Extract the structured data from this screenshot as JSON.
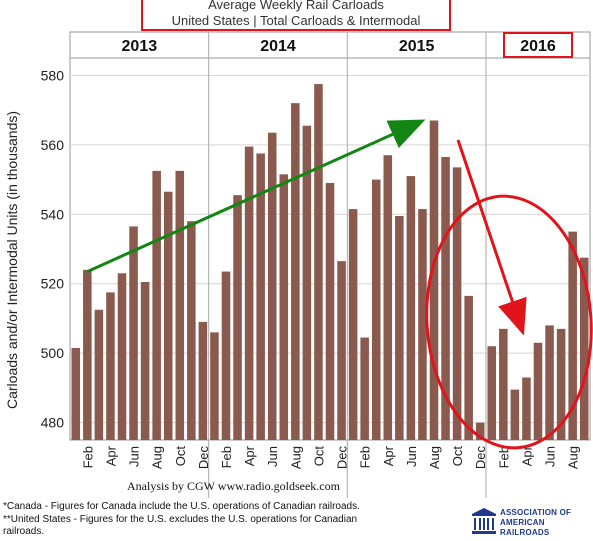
{
  "title_line1": "Average Weekly Rail Carloads",
  "title_line2": "United States | Total Carloads & Intermodal",
  "caption": "Analysis by CGW www.radio.goldseek.com",
  "footnote1": "*Canada - Figures for Canada include the U.S. operations of Canadian railroads.",
  "footnote2": "**United States - Figures for the U.S. excludes the U.S. operations for Canadian",
  "footnote3": "railroads.",
  "logo_line1": "ASSOCIATION OF",
  "logo_line2": "AMERICAN RAILROADS",
  "colors": {
    "bar": "#8b5a4e",
    "highlight": "#e0141a",
    "trend_arrow": "#128512",
    "grid": "#d6d6d6"
  },
  "chart_data": {
    "type": "bar",
    "ylabel": "Carloads and/or Intermodal Units (in thousands)",
    "ylim": [
      475,
      585
    ],
    "yticks": [
      480,
      500,
      520,
      540,
      560,
      580
    ],
    "grid": true,
    "years": [
      {
        "label": "2013",
        "highlighted": false
      },
      {
        "label": "2014",
        "highlighted": false
      },
      {
        "label": "2015",
        "highlighted": false
      },
      {
        "label": "2016",
        "highlighted": true
      }
    ],
    "categories": [
      "Jan",
      "Feb",
      "Mar",
      "Apr",
      "May",
      "Jun",
      "Jul",
      "Aug",
      "Sep",
      "Oct",
      "Nov",
      "Dec",
      "Jan",
      "Feb",
      "Mar",
      "Apr",
      "May",
      "Jun",
      "Jul",
      "Aug",
      "Sep",
      "Oct",
      "Nov",
      "Dec",
      "Jan",
      "Feb",
      "Mar",
      "Apr",
      "May",
      "Jun",
      "Jul",
      "Aug",
      "Sep",
      "Oct",
      "Nov",
      "Dec",
      "Jan",
      "Feb",
      "Mar",
      "Apr",
      "May",
      "Jun",
      "Jul",
      "Aug",
      "Sep"
    ],
    "shown_tick_labels": [
      "Feb",
      "Apr",
      "Jun",
      "Aug",
      "Oct",
      "Dec",
      "Feb",
      "Apr",
      "Jun",
      "Aug",
      "Oct",
      "Dec",
      "Feb",
      "Apr",
      "Jun",
      "Aug",
      "Oct",
      "Dec",
      "Feb",
      "Apr",
      "Jun",
      "Aug"
    ],
    "values": [
      501.5,
      524,
      512.5,
      517.5,
      523,
      536.5,
      520.5,
      552.5,
      546.5,
      552.5,
      538,
      509,
      506,
      523.5,
      545.5,
      559.5,
      557.5,
      563.5,
      551.5,
      572,
      565.5,
      577.5,
      549,
      526.5,
      541.5,
      504.5,
      550,
      557,
      539.5,
      551,
      541.5,
      567,
      556.5,
      553.5,
      516.5,
      480,
      502,
      507,
      489.5,
      493,
      503,
      508,
      507,
      535,
      527.5
    ]
  }
}
